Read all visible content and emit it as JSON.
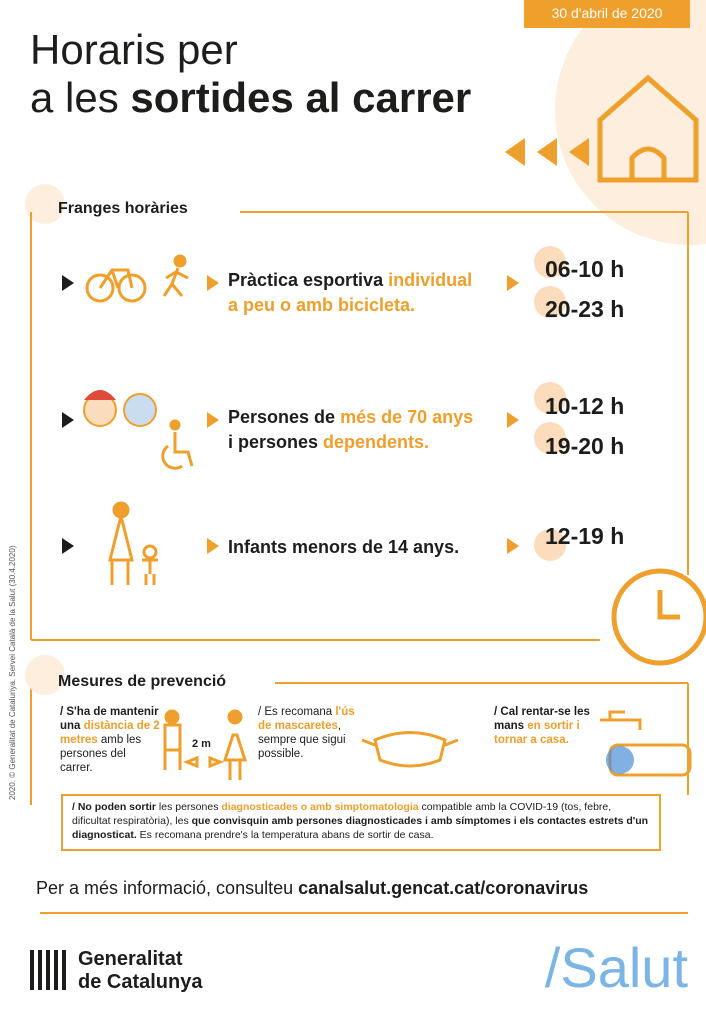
{
  "header": {
    "date": "30 d'abril de 2020",
    "title_line1": "Horaris per",
    "title_line2": [
      {
        "text": "a les ",
        "style": "normal"
      },
      {
        "text": "sortides al carrer",
        "style": "bold"
      }
    ]
  },
  "credit": "2020. © Generalitat de Catalunya. Servei Català de la Salut (30.4.2020)",
  "schedule": {
    "heading": "Franges horàries",
    "rows": [
      {
        "lines": [
          [
            {
              "text": "Pràctica esportiva ",
              "style": "bold"
            },
            {
              "text": "individual",
              "style": "accent"
            }
          ],
          [
            {
              "text": "a peu o amb bicicleta.",
              "style": "accent"
            }
          ]
        ],
        "times": [
          "06-10 h",
          "20-23 h"
        ]
      },
      {
        "lines": [
          [
            {
              "text": "Persones de ",
              "style": "bold"
            },
            {
              "text": "més de 70 anys",
              "style": "accent"
            }
          ],
          [
            {
              "text": "i persones ",
              "style": "bold"
            },
            {
              "text": "dependents.",
              "style": "accent"
            }
          ]
        ],
        "times": [
          "10-12 h",
          "19-20 h"
        ]
      },
      {
        "lines": [
          [
            {
              "text": "Infants menors de 14 anys.",
              "style": "bold"
            }
          ]
        ],
        "times": [
          "12-19 h"
        ]
      }
    ]
  },
  "prevention": {
    "heading": "Mesures de prevenció",
    "items": [
      [
        {
          "text": "/ S'ha de mantenir una ",
          "style": "bold"
        },
        {
          "text": "distància de 2 metres",
          "style": "accent"
        },
        {
          "text": " amb les persones del carrer.",
          "style": "normal"
        }
      ],
      [
        {
          "text": "/ Es recomana ",
          "style": "normal"
        },
        {
          "text": "l'ús de mascaretes",
          "style": "accent"
        },
        {
          "text": ", sempre que sigui possible.",
          "style": "normal"
        }
      ],
      [
        {
          "text": "/ Cal rentar-se les mans ",
          "style": "bold"
        },
        {
          "text": "en sortir i tornar a casa.",
          "style": "accent"
        }
      ]
    ],
    "distance_label": "2 m",
    "note": [
      {
        "text": "/ No poden sortir",
        "style": "bold"
      },
      {
        "text": " les persones ",
        "style": "normal"
      },
      {
        "text": "diagnosticades o amb simptomatologia",
        "style": "accent"
      },
      {
        "text": " compatible amb la COVID-19 (tos, febre, dificultat respiratòria), les ",
        "style": "normal"
      },
      {
        "text": "que convisquin amb persones diagnosticades i amb símptomes i els contactes estrets d'un diagnosticat.",
        "style": "bold"
      },
      {
        "text": " Es recomana prendre's la temperatura abans de sortir de casa.",
        "style": "normal"
      }
    ]
  },
  "footer": {
    "info": [
      {
        "text": "Per a més informació, consulteu ",
        "style": "normal"
      },
      {
        "text": "canalsalut.gencat.cat/coronavirus",
        "style": "bold"
      }
    ],
    "logo_line1": "Generalitat",
    "logo_line2": "de Catalunya",
    "brand": "/Salut"
  }
}
